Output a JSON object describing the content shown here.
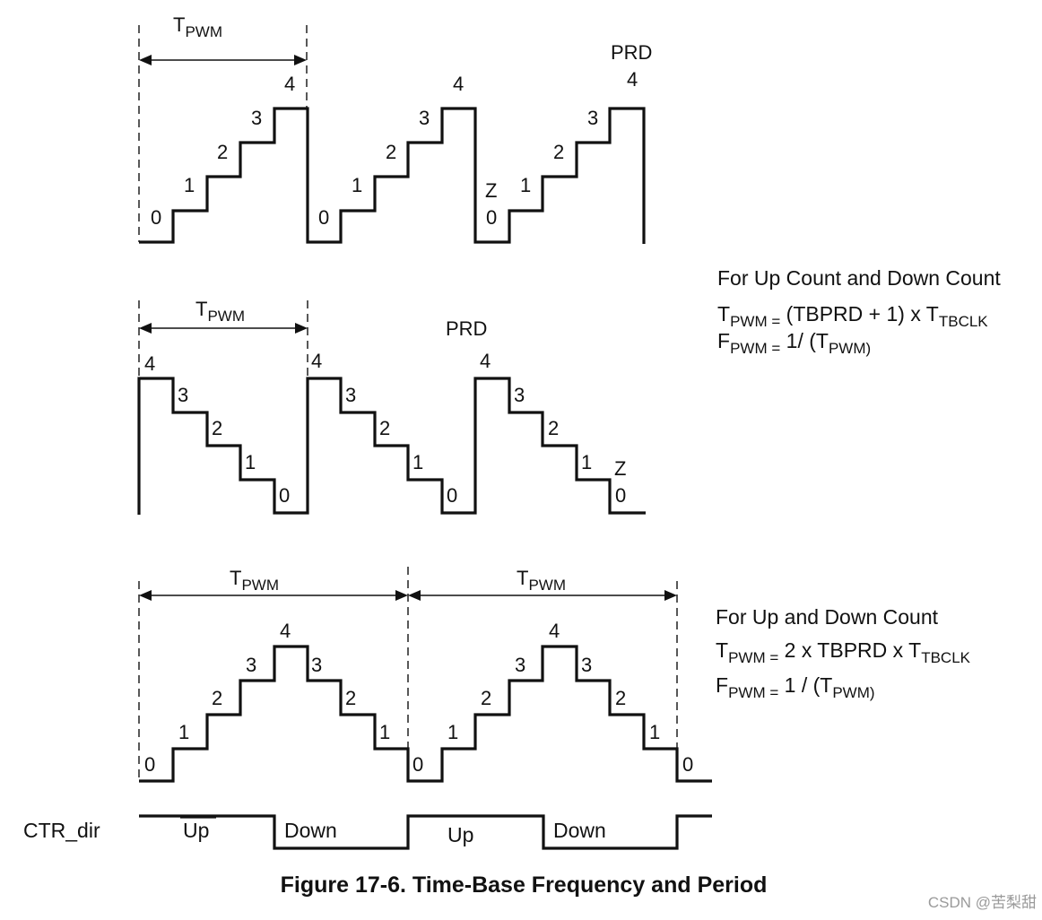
{
  "labels": {
    "t_main": "T",
    "t_sub": "PWM",
    "prd": "PRD",
    "z": "Z",
    "up": "Up",
    "down": "Down",
    "ctr_dir": "CTR_dir"
  },
  "counts": {
    "c0": "0",
    "c1": "1",
    "c2": "2",
    "c3": "3",
    "c4": "4"
  },
  "side1": {
    "heading": "For Up Count and Down Count",
    "l1_main": "T",
    "l1_sub": "PWM =",
    "l1_rest": " (TBPRD + 1) x T",
    "l1_sub2": "TBCLK",
    "l2_main": "F",
    "l2_sub": "PWM =",
    "l2_rest": " 1/ (T",
    "l2_sub2": "PWM)"
  },
  "side2": {
    "heading": "For Up and Down Count",
    "l1_main": "T",
    "l1_sub": "PWM =",
    "l1_rest": " 2 x TBPRD x T",
    "l1_sub2": "TBCLK",
    "l2_main": "F",
    "l2_sub": "PWM =",
    "l2_rest": " 1 / (T",
    "l2_sub2": "PWM)"
  },
  "caption": "Figure 17-6. Time-Base Frequency and Period",
  "watermark": "CSDN @苦梨甜"
}
